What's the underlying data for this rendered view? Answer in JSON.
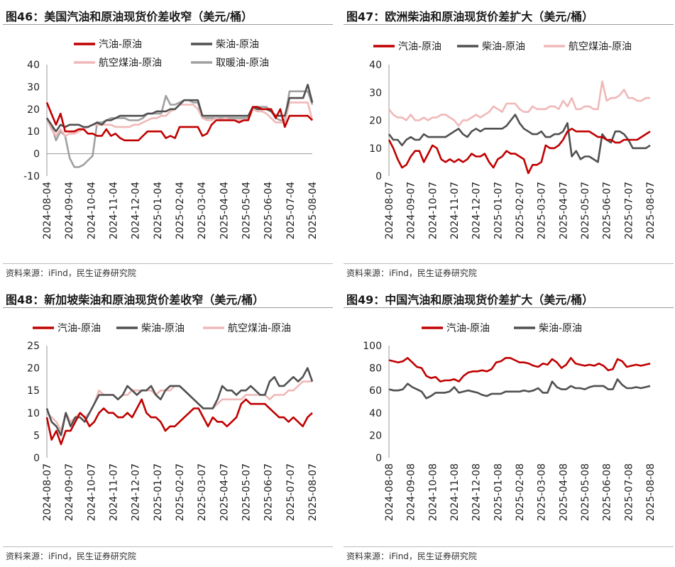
{
  "source": "资料来源：iFind，民生证券研究院",
  "chart_data": [
    {
      "type": "line",
      "title": "图46：美国汽油和原油现货价差收窄（美元/桶）",
      "ylim": [
        -10,
        40
      ],
      "yticks": [
        -10,
        0,
        10,
        20,
        30,
        40
      ],
      "negative_tick_color": "#c00000",
      "x_ticks": [
        "2024-08-04",
        "2024-09-04",
        "2024-10-04",
        "2024-11-04",
        "2024-12-04",
        "2025-01-04",
        "2025-02-04",
        "2025-03-04",
        "2025-04-04",
        "2025-05-04",
        "2025-06-04",
        "2025-07-04",
        "2025-08-04"
      ],
      "legend_position": "top",
      "series": [
        {
          "name": "汽油-原油",
          "color": "#c00000",
          "values": [
            23,
            18,
            13,
            18,
            10,
            10,
            10,
            11,
            11,
            9,
            9,
            8,
            8,
            11,
            8,
            9,
            7,
            6,
            6,
            6,
            6,
            8,
            10,
            10,
            10,
            10,
            7,
            8,
            7,
            12,
            12,
            12,
            12,
            12,
            8,
            9,
            13,
            15,
            15,
            15,
            15,
            15,
            14,
            15,
            15,
            21,
            21,
            20,
            20,
            20,
            16,
            20,
            12,
            17,
            17,
            17,
            17,
            17,
            15
          ]
        },
        {
          "name": "柴油-原油",
          "color": "#505050",
          "values": [
            16,
            13,
            10,
            13,
            12,
            13,
            13,
            13,
            12,
            12,
            13,
            14,
            13,
            15,
            15,
            16,
            17,
            17,
            17,
            17,
            17,
            17,
            18,
            18,
            19,
            19,
            19,
            20,
            20,
            22,
            24,
            24,
            24,
            24,
            17,
            17,
            17,
            17,
            17,
            17,
            17,
            17,
            17,
            17,
            17,
            21,
            20,
            20,
            20,
            19,
            17,
            17,
            17,
            25,
            25,
            25,
            25,
            31,
            23
          ]
        },
        {
          "name": "航空煤油-原油",
          "color": "#f0b8b8",
          "values": [
            16,
            11,
            8,
            11,
            8,
            9,
            9,
            10,
            11,
            12,
            13,
            13,
            13,
            13,
            13,
            12,
            12,
            12,
            12,
            13,
            13,
            14,
            15,
            16,
            16,
            17,
            17,
            19,
            20,
            22,
            22,
            22,
            22,
            20,
            16,
            15,
            15,
            16,
            15,
            16,
            15,
            15,
            15,
            15,
            15,
            20,
            19,
            19,
            18,
            16,
            14,
            14,
            14,
            23,
            23,
            23,
            23,
            23,
            15
          ]
        },
        {
          "name": "取暖油-原油",
          "color": "#a0a0a0",
          "values": [
            16,
            13,
            6,
            10,
            8,
            -2,
            -6,
            -6,
            -5,
            -3,
            -1,
            14,
            14,
            15,
            16,
            16,
            16,
            16,
            15,
            15,
            15,
            16,
            18,
            18,
            18,
            18,
            26,
            22,
            22,
            23,
            24,
            24,
            23,
            23,
            16,
            16,
            16,
            16,
            16,
            16,
            16,
            16,
            16,
            16,
            16,
            21,
            21,
            21,
            21,
            19,
            16,
            15,
            15,
            28,
            28,
            28,
            28,
            28,
            22
          ]
        }
      ]
    },
    {
      "type": "line",
      "title": "图47：欧洲柴油和原油现货价差扩大（美元/桶）",
      "ylim": [
        0,
        40
      ],
      "yticks": [
        0,
        10,
        20,
        30,
        40
      ],
      "x_ticks": [
        "2024-08-07",
        "2024-09-07",
        "2024-10-07",
        "2024-11-07",
        "2024-12-07",
        "2025-01-07",
        "2025-02-07",
        "2025-03-07",
        "2025-04-07",
        "2025-05-07",
        "2025-06-07",
        "2025-07-07",
        "2025-08-07"
      ],
      "legend_position": "top",
      "series": [
        {
          "name": "汽油-原油",
          "color": "#c00000",
          "values": [
            13,
            10,
            6,
            3,
            4,
            7,
            9,
            9,
            5,
            8,
            11,
            10,
            6,
            5,
            6,
            5,
            6,
            5,
            6,
            8,
            7,
            7,
            8,
            5,
            3,
            6,
            7,
            9,
            8,
            8,
            7,
            6,
            1,
            4,
            4,
            5,
            11,
            10,
            10,
            11,
            13,
            16,
            17,
            16,
            16,
            16,
            16,
            15,
            14,
            14,
            13,
            13,
            12,
            12,
            13,
            13,
            13,
            13,
            14,
            15,
            16
          ]
        },
        {
          "name": "柴油-原油",
          "color": "#505050",
          "values": [
            15,
            13,
            13,
            11,
            13,
            14,
            13,
            13,
            15,
            14,
            14,
            14,
            14,
            14,
            15,
            16,
            17,
            15,
            14,
            16,
            17,
            16,
            17,
            17,
            17,
            17,
            17,
            18,
            20,
            22,
            19,
            17,
            16,
            15,
            15,
            16,
            14,
            14,
            15,
            15,
            16,
            19,
            7,
            9,
            6,
            7,
            7,
            6,
            5,
            15,
            13,
            12,
            16,
            16,
            15,
            13,
            10,
            10,
            10,
            10,
            11
          ]
        },
        {
          "name": "航空煤油-原油",
          "color": "#f0b8b8",
          "values": [
            24,
            22,
            21,
            21,
            20,
            22,
            20,
            20,
            21,
            20,
            21,
            21,
            22,
            22,
            21,
            20,
            18,
            20,
            20,
            21,
            22,
            21,
            22,
            23,
            25,
            24,
            23,
            26,
            26,
            26,
            24,
            23,
            23,
            25,
            24,
            24,
            24,
            25,
            25,
            24,
            27,
            25,
            28,
            24,
            24,
            25,
            25,
            24,
            24,
            34,
            27,
            28,
            28,
            29,
            31,
            28,
            28,
            27,
            27,
            28,
            28
          ]
        }
      ]
    },
    {
      "type": "line",
      "title": "图48：新加坡柴油和原油现货价差收窄（美元/桶）",
      "ylim": [
        0,
        25
      ],
      "yticks": [
        0,
        5,
        10,
        15,
        20,
        25
      ],
      "x_ticks": [
        "2024-08-07",
        "2024-09-07",
        "2024-10-07",
        "2024-11-07",
        "2024-12-07",
        "2025-01-07",
        "2025-02-07",
        "2025-03-07",
        "2025-04-07",
        "2025-05-07",
        "2025-06-07",
        "2025-07-07",
        "2025-08-07"
      ],
      "legend_position": "top",
      "series": [
        {
          "name": "汽油-原油",
          "color": "#c00000",
          "values": [
            9,
            4,
            6,
            3,
            6,
            6,
            8,
            10,
            9,
            7,
            8,
            10,
            11,
            10,
            10,
            9,
            9,
            10,
            9,
            11,
            13,
            10,
            9,
            9,
            8,
            6,
            7,
            7,
            8,
            9,
            10,
            11,
            11,
            9,
            7,
            9,
            8,
            8,
            7,
            8,
            9,
            12,
            13,
            12,
            12,
            12,
            12,
            11,
            10,
            9,
            9,
            8,
            9,
            8,
            7,
            9,
            10
          ]
        },
        {
          "name": "柴油-原油",
          "color": "#505050",
          "values": [
            11,
            8,
            7,
            5,
            10,
            7,
            9,
            9,
            8,
            10,
            12,
            14,
            14,
            14,
            14,
            13,
            14,
            16,
            15,
            14,
            15,
            15,
            16,
            14,
            13,
            15,
            16,
            16,
            16,
            15,
            14,
            13,
            12,
            11,
            11,
            11,
            13,
            16,
            15,
            15,
            14,
            15,
            15,
            16,
            15,
            14,
            14,
            17,
            18,
            16,
            16,
            17,
            18,
            17,
            18,
            20,
            17
          ]
        },
        {
          "name": "航空煤油-原油",
          "color": "#f0b8b8",
          "values": [
            10,
            9,
            8,
            6,
            10,
            8,
            9,
            10,
            9,
            10,
            12,
            15,
            14,
            14,
            14,
            13,
            14,
            14,
            15,
            15,
            15,
            15,
            15,
            14,
            15,
            15,
            15,
            16,
            16,
            15,
            14,
            13,
            12,
            11,
            11,
            11,
            12,
            13,
            13,
            13,
            13,
            13,
            14,
            14,
            14,
            14,
            14,
            13,
            14,
            14,
            14,
            15,
            15,
            16,
            17,
            17,
            17
          ]
        }
      ]
    },
    {
      "type": "line",
      "title": "图49：中国汽油和原油现货价差扩大（美元/桶）",
      "ylim": [
        0,
        100
      ],
      "yticks": [
        0,
        20,
        40,
        60,
        80,
        100
      ],
      "x_ticks": [
        "2024-08-08",
        "2024-09-08",
        "2024-10-08",
        "2024-11-08",
        "2024-12-08",
        "2025-01-08",
        "2025-02-08",
        "2025-03-08",
        "2025-04-08",
        "2025-05-08",
        "2025-06-08",
        "2025-07-08",
        "2025-08-08"
      ],
      "legend_position": "top",
      "series": [
        {
          "name": "汽油-原油",
          "color": "#c00000",
          "values": [
            87,
            86,
            85,
            86,
            89,
            85,
            81,
            80,
            73,
            71,
            72,
            68,
            69,
            69,
            70,
            68,
            73,
            76,
            77,
            77,
            78,
            77,
            79,
            85,
            86,
            89,
            89,
            87,
            85,
            85,
            84,
            82,
            81,
            84,
            83,
            88,
            85,
            80,
            83,
            89,
            84,
            83,
            82,
            83,
            82,
            84,
            82,
            78,
            79,
            88,
            86,
            81,
            82,
            83,
            82,
            83,
            84
          ]
        },
        {
          "name": "柴油-原油",
          "color": "#505050",
          "values": [
            61,
            60,
            60,
            61,
            66,
            63,
            61,
            59,
            53,
            55,
            58,
            58,
            58,
            59,
            63,
            58,
            59,
            60,
            59,
            58,
            56,
            55,
            57,
            57,
            57,
            59,
            59,
            59,
            59,
            60,
            59,
            60,
            62,
            58,
            58,
            68,
            63,
            61,
            61,
            64,
            62,
            62,
            61,
            63,
            64,
            64,
            64,
            61,
            61,
            70,
            65,
            62,
            62,
            63,
            62,
            63,
            64
          ]
        }
      ]
    }
  ]
}
